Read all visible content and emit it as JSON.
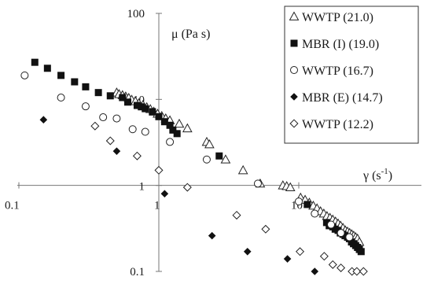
{
  "chart_data": {
    "type": "scatter",
    "x_scale": "log",
    "y_scale": "log",
    "xlim": [
      0.1,
      30
    ],
    "ylim": [
      0.1,
      100
    ],
    "x_tick_labels": [
      "0.1",
      "1",
      "10"
    ],
    "y_tick_labels": [
      "0.1",
      "1",
      "10",
      "100"
    ],
    "x_ticks": [
      0.1,
      1,
      10
    ],
    "y_ticks": [
      0.1,
      1,
      10,
      100
    ],
    "xlabel": "γ (s",
    "xlabel_sup": "-1",
    "xlabel_end": ")",
    "ylabel": "μ (Pa s)",
    "grid": false,
    "legend_position": "top-right",
    "series": [
      {
        "name": "WWTP (21.0)",
        "marker": "triangle-open",
        "x": [
          0.5,
          0.52,
          0.55,
          0.58,
          0.61,
          0.64,
          0.68,
          0.72,
          0.77,
          0.82,
          0.87,
          0.92,
          0.98,
          1.05,
          1.12,
          1.2,
          1.4,
          1.6,
          2.2,
          2.3,
          3.0,
          4.0,
          5.3,
          7.7,
          8.2,
          8.7,
          10.3,
          11.1,
          11.9,
          12.7,
          13.5,
          14.3,
          15.1,
          15.9,
          16.7,
          17.5,
          18.3,
          19.1,
          19.9,
          20.7,
          21.5,
          22.3,
          23.1,
          23.9,
          24.7,
          25.5,
          26.3,
          27.1
        ],
        "y": [
          12,
          11.5,
          11.2,
          10.8,
          10.4,
          9.9,
          9.5,
          9.0,
          8.6,
          8.1,
          7.7,
          7.2,
          6.8,
          6.4,
          6.0,
          5.7,
          5.2,
          4.6,
          3.2,
          3.0,
          2.0,
          1.5,
          1.05,
          1.0,
          0.98,
          0.95,
          0.72,
          0.68,
          0.63,
          0.58,
          0.54,
          0.5,
          0.47,
          0.44,
          0.42,
          0.4,
          0.38,
          0.36,
          0.34,
          0.32,
          0.3,
          0.29,
          0.28,
          0.27,
          0.26,
          0.25,
          0.24,
          0.22
        ]
      },
      {
        "name": "MBR (I) (19.0)",
        "marker": "square-filled",
        "x": [
          0.13,
          0.16,
          0.2,
          0.25,
          0.3,
          0.37,
          0.45,
          0.55,
          0.6,
          0.7,
          0.75,
          0.8,
          0.9,
          1.0,
          1.1,
          1.2,
          1.26,
          1.35,
          2.7,
          11.5,
          15.8,
          16.5,
          17.5,
          18.2,
          19.1,
          19.8,
          20.7,
          21.4,
          22.3,
          23.0,
          23.8,
          24.6,
          25.5,
          26.3,
          27.1,
          27.9
        ],
        "y": [
          27,
          23,
          19,
          16,
          14,
          12,
          11,
          10.5,
          9.3,
          8.5,
          8.2,
          7.8,
          7.2,
          6.3,
          5.5,
          5.0,
          4.4,
          4.0,
          2.2,
          0.6,
          0.37,
          0.34,
          0.33,
          0.31,
          0.3,
          0.28,
          0.27,
          0.26,
          0.25,
          0.24,
          0.22,
          0.21,
          0.2,
          0.19,
          0.18,
          0.17
        ]
      },
      {
        "name": "WWTP (16.7)",
        "marker": "circle-open",
        "x": [
          0.11,
          0.2,
          0.3,
          0.4,
          0.5,
          0.65,
          0.8,
          1.2,
          2.2,
          5.1,
          10,
          13,
          17,
          20,
          23
        ],
        "y": [
          19,
          10.5,
          8.3,
          6.2,
          6.0,
          4.5,
          4.2,
          3.2,
          2.0,
          1.05,
          0.65,
          0.47,
          0.35,
          0.28,
          0.25
        ]
      },
      {
        "name": "MBR (E) (14.7)",
        "marker": "diamond-filled",
        "x": [
          0.15,
          0.5,
          1.1,
          2.4,
          4.3,
          8.3,
          13
        ],
        "y": [
          5.8,
          2.5,
          0.8,
          0.26,
          0.17,
          0.14,
          0.1
        ]
      },
      {
        "name": "WWTP (12.2)",
        "marker": "diamond-open",
        "x": [
          0.35,
          0.45,
          0.7,
          1.0,
          1.6,
          3.6,
          5.8,
          10.2,
          15.2,
          17.5,
          20,
          24,
          26,
          29
        ],
        "y": [
          4.9,
          3.3,
          2.2,
          1.5,
          0.95,
          0.45,
          0.31,
          0.17,
          0.15,
          0.12,
          0.11,
          0.1,
          0.1,
          0.1
        ]
      }
    ]
  }
}
